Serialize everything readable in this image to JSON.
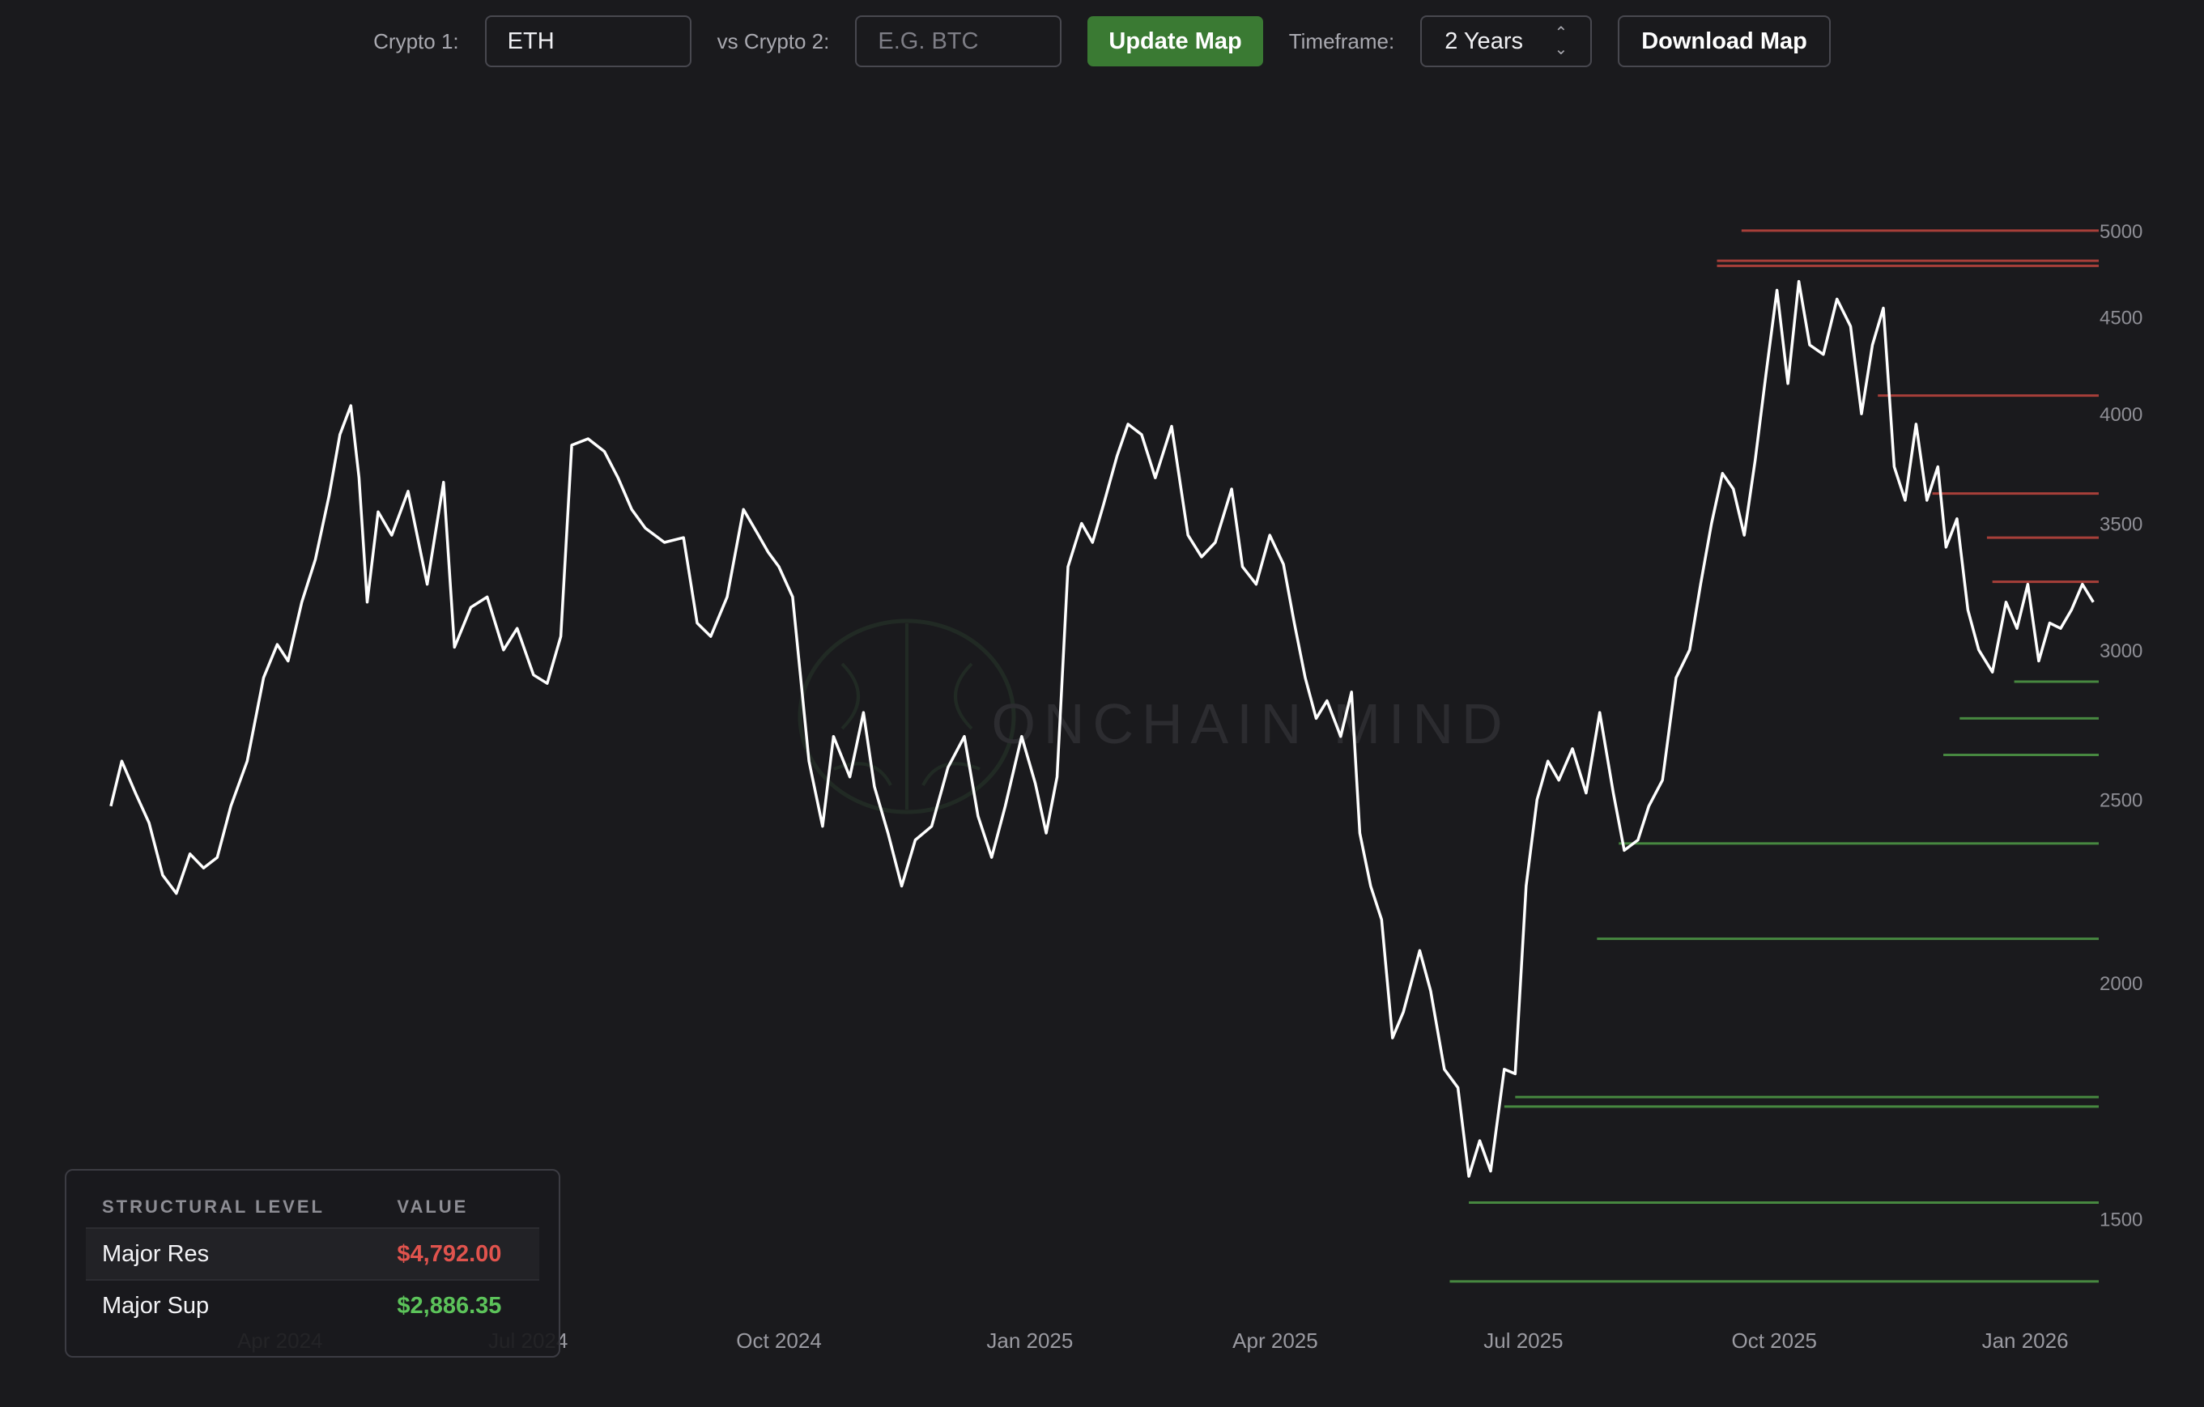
{
  "toolbar": {
    "crypto1_label": "Crypto 1:",
    "crypto1_value": "ETH",
    "crypto2_label": "vs Crypto 2:",
    "crypto2_placeholder": "E.G. BTC",
    "update_label": "Update Map",
    "timeframe_label": "Timeframe:",
    "timeframe_value": "2 Years",
    "download_label": "Download Map"
  },
  "watermark": "ONCHAIN MIND",
  "legend": {
    "col_level": "STRUCTURAL LEVEL",
    "col_value": "VALUE",
    "rows": [
      {
        "label": "Major Res",
        "value": "$4,792.00",
        "color": "#e0534d"
      },
      {
        "label": "Major Sup",
        "value": "$2,886.35",
        "color": "#5cc35a"
      }
    ]
  },
  "chart_data": {
    "type": "line",
    "title": "",
    "xlabel": "",
    "ylabel": "",
    "y_scale": "log",
    "ylim": [
      1340,
      5600
    ],
    "xlim": [
      "2024-01-22",
      "2026-01-28"
    ],
    "y_ticks": [
      1500,
      2000,
      2500,
      3000,
      3500,
      4000,
      4500,
      5000
    ],
    "x_ticks": [
      {
        "date": "2024-04-01",
        "label": "Apr 2024"
      },
      {
        "date": "2024-07-01",
        "label": "Jul 2024"
      },
      {
        "date": "2024-10-01",
        "label": "Oct 2024"
      },
      {
        "date": "2025-01-01",
        "label": "Jan 2025"
      },
      {
        "date": "2025-04-01",
        "label": "Apr 2025"
      },
      {
        "date": "2025-07-01",
        "label": "Jul 2025"
      },
      {
        "date": "2025-10-01",
        "label": "Oct 2025"
      },
      {
        "date": "2026-01-01",
        "label": "Jan 2026"
      }
    ],
    "grid": false,
    "line_color": "#ffffff",
    "resistance_color": "#c0463f",
    "support_color": "#4f9c47",
    "series": [
      {
        "points": [
          [
            "2024-01-30",
            2480
          ],
          [
            "2024-02-03",
            2620
          ],
          [
            "2024-02-08",
            2520
          ],
          [
            "2024-02-13",
            2430
          ],
          [
            "2024-02-18",
            2280
          ],
          [
            "2024-02-23",
            2230
          ],
          [
            "2024-02-28",
            2340
          ],
          [
            "2024-03-04",
            2300
          ],
          [
            "2024-03-09",
            2330
          ],
          [
            "2024-03-14",
            2480
          ],
          [
            "2024-03-20",
            2620
          ],
          [
            "2024-03-26",
            2900
          ],
          [
            "2024-03-31",
            3020
          ],
          [
            "2024-04-04",
            2960
          ],
          [
            "2024-04-09",
            3180
          ],
          [
            "2024-04-14",
            3350
          ],
          [
            "2024-04-19",
            3620
          ],
          [
            "2024-04-23",
            3900
          ],
          [
            "2024-04-27",
            4040
          ],
          [
            "2024-04-30",
            3700
          ],
          [
            "2024-05-03",
            3180
          ],
          [
            "2024-05-07",
            3550
          ],
          [
            "2024-05-12",
            3450
          ],
          [
            "2024-05-18",
            3640
          ],
          [
            "2024-05-25",
            3250
          ],
          [
            "2024-05-31",
            3680
          ],
          [
            "2024-06-04",
            3010
          ],
          [
            "2024-06-10",
            3160
          ],
          [
            "2024-06-16",
            3200
          ],
          [
            "2024-06-22",
            3000
          ],
          [
            "2024-06-27",
            3080
          ],
          [
            "2024-07-03",
            2910
          ],
          [
            "2024-07-08",
            2880
          ],
          [
            "2024-07-13",
            3050
          ],
          [
            "2024-07-17",
            3850
          ],
          [
            "2024-07-23",
            3880
          ],
          [
            "2024-07-29",
            3820
          ],
          [
            "2024-08-03",
            3700
          ],
          [
            "2024-08-08",
            3560
          ],
          [
            "2024-08-13",
            3480
          ],
          [
            "2024-08-20",
            3420
          ],
          [
            "2024-08-27",
            3440
          ],
          [
            "2024-09-01",
            3100
          ],
          [
            "2024-09-06",
            3050
          ],
          [
            "2024-09-12",
            3200
          ],
          [
            "2024-09-18",
            3560
          ],
          [
            "2024-09-23",
            3460
          ],
          [
            "2024-09-27",
            3380
          ],
          [
            "2024-10-01",
            3320
          ],
          [
            "2024-10-06",
            3200
          ],
          [
            "2024-10-12",
            2620
          ],
          [
            "2024-10-17",
            2420
          ],
          [
            "2024-10-21",
            2700
          ],
          [
            "2024-10-27",
            2570
          ],
          [
            "2024-11-01",
            2780
          ],
          [
            "2024-11-05",
            2540
          ],
          [
            "2024-11-10",
            2400
          ],
          [
            "2024-11-15",
            2250
          ],
          [
            "2024-11-20",
            2380
          ],
          [
            "2024-11-26",
            2420
          ],
          [
            "2024-12-02",
            2600
          ],
          [
            "2024-12-08",
            2700
          ],
          [
            "2024-12-13",
            2450
          ],
          [
            "2024-12-18",
            2330
          ],
          [
            "2024-12-23",
            2480
          ],
          [
            "2024-12-29",
            2700
          ],
          [
            "2025-01-03",
            2550
          ],
          [
            "2025-01-07",
            2400
          ],
          [
            "2025-01-11",
            2570
          ],
          [
            "2025-01-15",
            3320
          ],
          [
            "2025-01-20",
            3500
          ],
          [
            "2025-01-24",
            3420
          ],
          [
            "2025-01-28",
            3580
          ],
          [
            "2025-02-02",
            3800
          ],
          [
            "2025-02-06",
            3950
          ],
          [
            "2025-02-11",
            3900
          ],
          [
            "2025-02-16",
            3700
          ],
          [
            "2025-02-22",
            3940
          ],
          [
            "2025-02-28",
            3450
          ],
          [
            "2025-03-05",
            3360
          ],
          [
            "2025-03-10",
            3420
          ],
          [
            "2025-03-16",
            3650
          ],
          [
            "2025-03-20",
            3320
          ],
          [
            "2025-03-25",
            3250
          ],
          [
            "2025-03-30",
            3450
          ],
          [
            "2025-04-04",
            3330
          ],
          [
            "2025-04-08",
            3100
          ],
          [
            "2025-04-12",
            2900
          ],
          [
            "2025-04-16",
            2760
          ],
          [
            "2025-04-20",
            2820
          ],
          [
            "2025-04-25",
            2700
          ],
          [
            "2025-04-29",
            2850
          ],
          [
            "2025-05-02",
            2400
          ],
          [
            "2025-05-06",
            2250
          ],
          [
            "2025-05-10",
            2160
          ],
          [
            "2025-05-14",
            1870
          ],
          [
            "2025-05-18",
            1930
          ],
          [
            "2025-05-24",
            2080
          ],
          [
            "2025-05-28",
            1980
          ],
          [
            "2025-06-02",
            1800
          ],
          [
            "2025-06-07",
            1760
          ],
          [
            "2025-06-11",
            1580
          ],
          [
            "2025-06-15",
            1650
          ],
          [
            "2025-06-19",
            1590
          ],
          [
            "2025-06-24",
            1800
          ],
          [
            "2025-06-28",
            1790
          ],
          [
            "2025-07-02",
            2250
          ],
          [
            "2025-07-06",
            2500
          ],
          [
            "2025-07-10",
            2620
          ],
          [
            "2025-07-14",
            2560
          ],
          [
            "2025-07-19",
            2660
          ],
          [
            "2025-07-24",
            2520
          ],
          [
            "2025-07-29",
            2780
          ],
          [
            "2025-08-03",
            2520
          ],
          [
            "2025-08-07",
            2350
          ],
          [
            "2025-08-12",
            2380
          ],
          [
            "2025-08-16",
            2480
          ],
          [
            "2025-08-21",
            2560
          ],
          [
            "2025-08-26",
            2900
          ],
          [
            "2025-08-31",
            3000
          ],
          [
            "2025-09-04",
            3250
          ],
          [
            "2025-09-08",
            3500
          ],
          [
            "2025-09-12",
            3720
          ],
          [
            "2025-09-16",
            3650
          ],
          [
            "2025-09-20",
            3450
          ],
          [
            "2025-09-24",
            3780
          ],
          [
            "2025-09-28",
            4200
          ],
          [
            "2025-10-02",
            4650
          ],
          [
            "2025-10-06",
            4150
          ],
          [
            "2025-10-10",
            4700
          ],
          [
            "2025-10-14",
            4350
          ],
          [
            "2025-10-19",
            4300
          ],
          [
            "2025-10-24",
            4600
          ],
          [
            "2025-10-29",
            4450
          ],
          [
            "2025-11-02",
            4000
          ],
          [
            "2025-11-06",
            4350
          ],
          [
            "2025-11-10",
            4550
          ],
          [
            "2025-11-14",
            3750
          ],
          [
            "2025-11-18",
            3600
          ],
          [
            "2025-11-22",
            3950
          ],
          [
            "2025-11-26",
            3600
          ],
          [
            "2025-11-30",
            3750
          ],
          [
            "2025-12-03",
            3400
          ],
          [
            "2025-12-07",
            3520
          ],
          [
            "2025-12-11",
            3150
          ],
          [
            "2025-12-15",
            3000
          ],
          [
            "2025-12-20",
            2920
          ],
          [
            "2025-12-25",
            3180
          ],
          [
            "2025-12-29",
            3080
          ],
          [
            "2026-01-02",
            3250
          ],
          [
            "2026-01-06",
            2960
          ],
          [
            "2026-01-10",
            3100
          ],
          [
            "2026-01-14",
            3080
          ],
          [
            "2026-01-18",
            3150
          ],
          [
            "2026-01-22",
            3250
          ],
          [
            "2026-01-26",
            3180
          ]
        ]
      }
    ],
    "levels": [
      {
        "y": 4820,
        "kind": "res",
        "from": "2025-09-10"
      },
      {
        "y": 4790,
        "kind": "res",
        "from": "2025-09-10"
      },
      {
        "y": 5000,
        "kind": "res",
        "from": "2025-09-19"
      },
      {
        "y": 4090,
        "kind": "res",
        "from": "2025-11-08"
      },
      {
        "y": 3630,
        "kind": "res",
        "from": "2025-11-28"
      },
      {
        "y": 3440,
        "kind": "res",
        "from": "2025-12-18"
      },
      {
        "y": 3260,
        "kind": "res",
        "from": "2025-12-20"
      },
      {
        "y": 2886.35,
        "kind": "sup",
        "from": "2025-12-28"
      },
      {
        "y": 2760,
        "kind": "sup",
        "from": "2025-12-08"
      },
      {
        "y": 2640,
        "kind": "sup",
        "from": "2025-12-02"
      },
      {
        "y": 2370,
        "kind": "sup",
        "from": "2025-08-05"
      },
      {
        "y": 2110,
        "kind": "sup",
        "from": "2025-07-28"
      },
      {
        "y": 1740,
        "kind": "sup",
        "from": "2025-06-28"
      },
      {
        "y": 1720,
        "kind": "sup",
        "from": "2025-06-24"
      },
      {
        "y": 1530,
        "kind": "sup",
        "from": "2025-06-11"
      },
      {
        "y": 1390,
        "kind": "sup",
        "from": "2025-06-04"
      }
    ]
  }
}
